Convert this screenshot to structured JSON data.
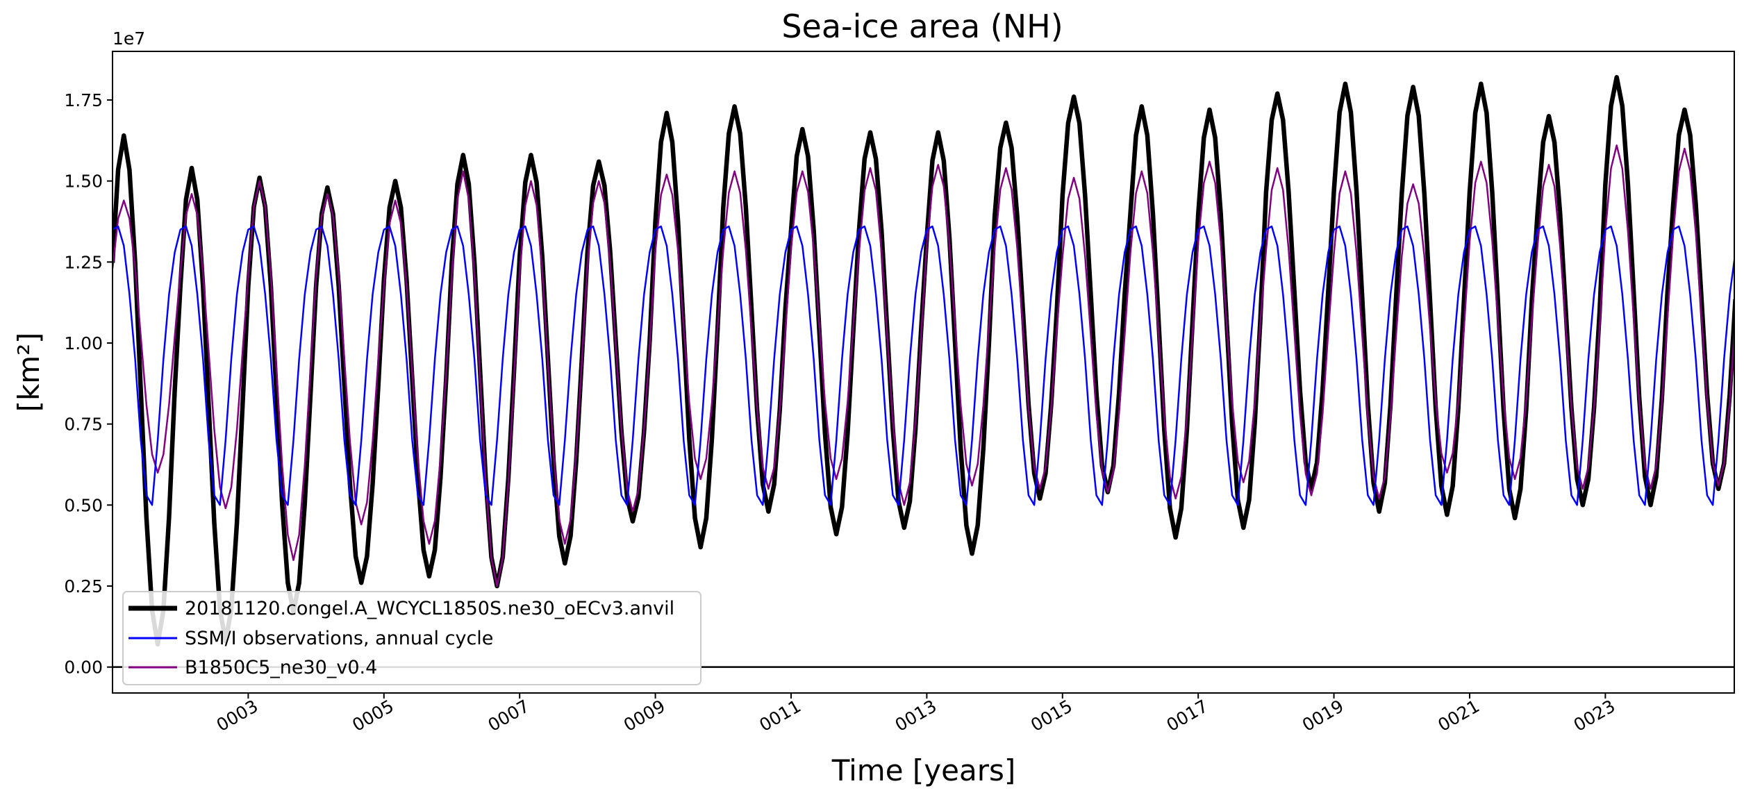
{
  "chart_data": {
    "type": "line",
    "title": "Sea-ice area (NH)",
    "xlabel": "Time [years]",
    "ylabel": "[km²]",
    "y_offset_label": "1e7",
    "y_scale_factor": 10000000,
    "xlim": [
      1.0,
      24.9
    ],
    "ylim": [
      -0.08,
      1.9
    ],
    "x_ticks": [
      3,
      5,
      7,
      9,
      11,
      13,
      15,
      17,
      19,
      21,
      23
    ],
    "x_tick_labels": [
      "0003",
      "0005",
      "0007",
      "0009",
      "0011",
      "0013",
      "0015",
      "0017",
      "0019",
      "0021",
      "0023"
    ],
    "y_ticks": [
      0.0,
      0.25,
      0.5,
      0.75,
      1.0,
      1.25,
      1.5,
      1.75
    ],
    "y_tick_labels": [
      "0.00",
      "0.25",
      "0.50",
      "0.75",
      "1.00",
      "1.25",
      "1.50",
      "1.75"
    ],
    "reference_line_y": 0.0,
    "legend_position": "lower-left",
    "grid": false,
    "series": [
      {
        "name": "20181120.congel.A_WCYCL1850S.ne30_oECv3.anvil",
        "color": "#000000",
        "style": "thick",
        "annual_max": [
          1.64,
          1.54,
          1.51,
          1.48,
          1.5,
          1.58,
          1.58,
          1.56,
          1.71,
          1.73,
          1.66,
          1.65,
          1.65,
          1.68,
          1.76,
          1.73,
          1.72,
          1.77,
          1.8,
          1.79,
          1.8,
          1.7,
          1.82,
          1.72
        ],
        "annual_min": [
          0.07,
          0.08,
          0.17,
          0.26,
          0.28,
          0.25,
          0.32,
          0.45,
          0.37,
          0.48,
          0.41,
          0.43,
          0.35,
          0.52,
          0.54,
          0.4,
          0.43,
          0.55,
          0.48,
          0.47,
          0.46,
          0.5,
          0.5,
          0.55
        ]
      },
      {
        "name": "SSM/I observations, annual cycle",
        "color": "#0000ff",
        "style": "thin",
        "monthly_cycle": [
          1.35,
          1.36,
          1.3,
          1.15,
          0.95,
          0.7,
          0.53,
          0.5,
          0.7,
          0.95,
          1.15,
          1.28
        ]
      },
      {
        "name": "B1850C5_ne30_v0.4",
        "color": "#800080",
        "style": "thin",
        "annual_max": [
          1.44,
          1.46,
          1.5,
          1.46,
          1.44,
          1.53,
          1.5,
          1.5,
          1.52,
          1.53,
          1.53,
          1.54,
          1.55,
          1.54,
          1.51,
          1.53,
          1.56,
          1.54,
          1.53,
          1.49,
          1.56,
          1.55,
          1.61,
          1.6
        ],
        "annual_min": [
          0.6,
          0.49,
          0.33,
          0.44,
          0.38,
          0.25,
          0.38,
          0.48,
          0.58,
          0.55,
          0.58,
          0.5,
          0.56,
          0.55,
          0.54,
          0.52,
          0.57,
          0.53,
          0.52,
          0.6,
          0.58,
          0.55,
          0.55,
          0.56
        ]
      }
    ]
  }
}
